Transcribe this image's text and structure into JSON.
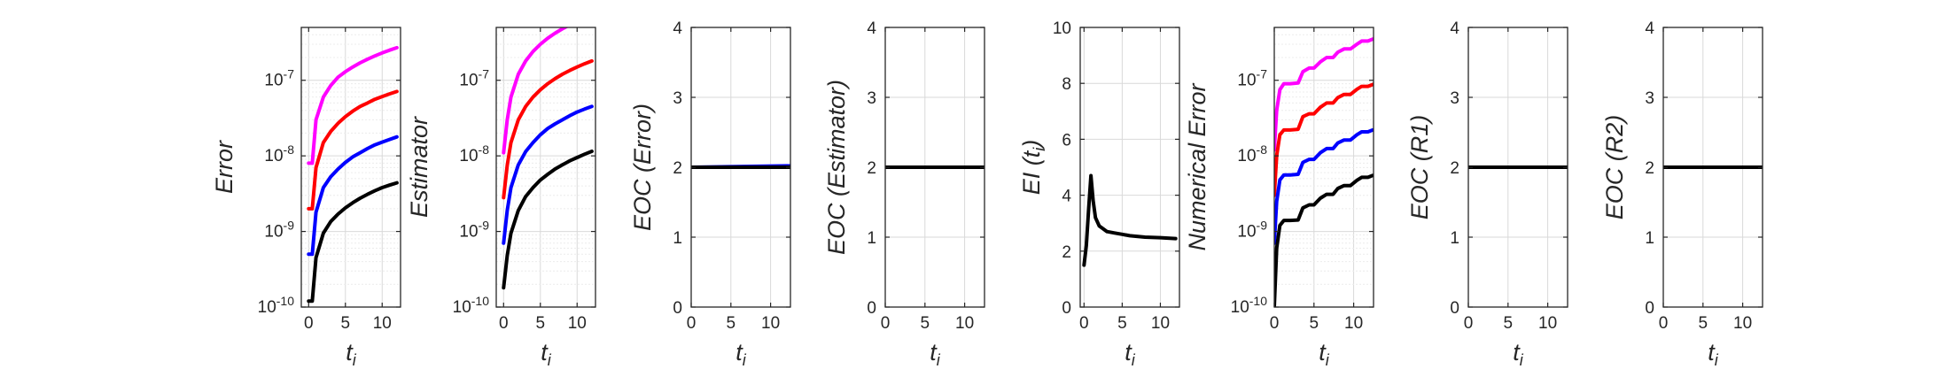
{
  "colors": {
    "axis": "#262626",
    "grid": "#d9d9d9",
    "series_black": "#000000",
    "series_blue": "#0000ff",
    "series_red": "#ff0000",
    "series_magenta": "#ff00ff",
    "background": "#ffffff"
  },
  "chart_data": [
    {
      "type": "line",
      "ylabel": "Error",
      "xlabel_main": "t",
      "xlabel_sub": "i",
      "yscale": "log",
      "ylim": [
        1e-10,
        5e-07
      ],
      "xlim": [
        -1,
        12.5
      ],
      "xticks": [
        "0",
        "5",
        "10"
      ],
      "yticks": [
        "10-10",
        "10-9",
        "10-8",
        "10-7"
      ],
      "grid": true,
      "x": [
        0,
        0.5,
        1,
        2,
        3,
        4,
        5,
        6,
        7,
        8,
        9,
        10,
        11,
        12
      ],
      "series": [
        {
          "color": "magenta",
          "values": [
            8e-09,
            8e-09,
            3e-08,
            6e-08,
            8.5e-08,
            1.1e-07,
            1.3e-07,
            1.5e-07,
            1.7e-07,
            1.9e-07,
            2.1e-07,
            2.3e-07,
            2.5e-07,
            2.7e-07
          ]
        },
        {
          "color": "red",
          "values": [
            2e-09,
            2e-09,
            7e-09,
            1.5e-08,
            2.1e-08,
            2.7e-08,
            3.3e-08,
            3.9e-08,
            4.5e-08,
            5e-08,
            5.6e-08,
            6.1e-08,
            6.6e-08,
            7.1e-08
          ]
        },
        {
          "color": "blue",
          "values": [
            5e-10,
            5e-10,
            1.8e-09,
            3.8e-09,
            5.3e-09,
            6.7e-09,
            8.2e-09,
            9.7e-09,
            1.1e-08,
            1.25e-08,
            1.4e-08,
            1.52e-08,
            1.65e-08,
            1.78e-08
          ]
        },
        {
          "color": "black",
          "values": [
            1.2e-10,
            1.2e-10,
            4.5e-10,
            9.5e-10,
            1.35e-09,
            1.7e-09,
            2.05e-09,
            2.4e-09,
            2.75e-09,
            3.1e-09,
            3.45e-09,
            3.8e-09,
            4.1e-09,
            4.4e-09
          ]
        }
      ]
    },
    {
      "type": "line",
      "ylabel": "Estimator",
      "xlabel_main": "t",
      "xlabel_sub": "i",
      "yscale": "log",
      "ylim": [
        1e-10,
        5e-07
      ],
      "xlim": [
        -1,
        12.5
      ],
      "xticks": [
        "0",
        "5",
        "10"
      ],
      "yticks": [
        "10-10",
        "10-9",
        "10-8",
        "10-7"
      ],
      "grid": true,
      "x": [
        0,
        0.5,
        1,
        2,
        3,
        4,
        5,
        6,
        7,
        8,
        9,
        10,
        11,
        12
      ],
      "series": [
        {
          "color": "magenta",
          "values": [
            1.1e-08,
            3e-08,
            6e-08,
            1.2e-07,
            1.8e-07,
            2.4e-07,
            3e-07,
            3.6e-07,
            4.2e-07,
            4.8e-07,
            5.4e-07,
            6e-07,
            6.6e-07,
            7.2e-07
          ]
        },
        {
          "color": "red",
          "values": [
            2.8e-09,
            7.5e-09,
            1.5e-08,
            3e-08,
            4.5e-08,
            6e-08,
            7.5e-08,
            9e-08,
            1.05e-07,
            1.2e-07,
            1.35e-07,
            1.5e-07,
            1.65e-07,
            1.8e-07
          ]
        },
        {
          "color": "blue",
          "values": [
            7e-10,
            1.9e-09,
            3.8e-09,
            7.6e-09,
            1.14e-08,
            1.5e-08,
            1.9e-08,
            2.3e-08,
            2.65e-08,
            3e-08,
            3.4e-08,
            3.8e-08,
            4.15e-08,
            4.5e-08
          ]
        },
        {
          "color": "black",
          "values": [
            1.8e-10,
            4.8e-10,
            9.5e-10,
            1.9e-09,
            2.9e-09,
            3.8e-09,
            4.8e-09,
            5.7e-09,
            6.7e-09,
            7.6e-09,
            8.6e-09,
            9.5e-09,
            1.05e-08,
            1.15e-08
          ]
        }
      ]
    },
    {
      "type": "line",
      "ylabel": "EOC (Error)",
      "xlabel_main": "t",
      "xlabel_sub": "i",
      "yscale": "linear",
      "ylim": [
        0,
        4
      ],
      "xlim": [
        0,
        12.5
      ],
      "xticks": [
        "0",
        "5",
        "10"
      ],
      "yticks": [
        "0",
        "1",
        "2",
        "3",
        "4"
      ],
      "grid": true,
      "x": [
        0,
        12.5
      ],
      "series": [
        {
          "color": "blue",
          "values": [
            2.0,
            2.02
          ]
        },
        {
          "color": "black",
          "values": [
            2.0,
            2.0
          ]
        }
      ]
    },
    {
      "type": "line",
      "ylabel": "EOC (Estimator)",
      "xlabel_main": "t",
      "xlabel_sub": "i",
      "yscale": "linear",
      "ylim": [
        0,
        4
      ],
      "xlim": [
        0,
        12.5
      ],
      "xticks": [
        "0",
        "5",
        "10"
      ],
      "yticks": [
        "0",
        "1",
        "2",
        "3",
        "4"
      ],
      "grid": true,
      "x": [
        0,
        12.5
      ],
      "series": [
        {
          "color": "black",
          "values": [
            2.0,
            2.0
          ]
        }
      ]
    },
    {
      "type": "line",
      "ylabel": "EI (t",
      "ylabel_sub": "i",
      "ylabel_close": ")",
      "xlabel_main": "t",
      "xlabel_sub": "i",
      "yscale": "linear",
      "ylim": [
        0,
        10
      ],
      "xlim": [
        -0.5,
        12.5
      ],
      "xticks": [
        "0",
        "5",
        "10"
      ],
      "yticks": [
        "0",
        "2",
        "4",
        "6",
        "8",
        "10"
      ],
      "grid": true,
      "x": [
        0,
        0.3,
        0.6,
        0.9,
        1.2,
        1.5,
        2,
        2.5,
        3,
        4,
        5,
        6,
        8,
        10,
        12
      ],
      "series": [
        {
          "color": "black",
          "values": [
            1.5,
            2.2,
            3.5,
            4.7,
            3.8,
            3.2,
            2.9,
            2.8,
            2.7,
            2.65,
            2.6,
            2.55,
            2.5,
            2.48,
            2.45
          ]
        }
      ]
    },
    {
      "type": "line",
      "ylabel": "Numerical Error",
      "xlabel_main": "t",
      "xlabel_sub": "i",
      "yscale": "log",
      "ylim": [
        1e-10,
        5e-07
      ],
      "xlim": [
        0,
        12.5
      ],
      "xticks": [
        "0",
        "5",
        "10"
      ],
      "yticks": [
        "10-10",
        "10-9",
        "10-8",
        "10-7"
      ],
      "grid": true,
      "x": [
        0,
        0.3,
        0.7,
        1.2,
        2.0,
        3.0,
        3.6,
        4.4,
        5.0,
        5.8,
        6.6,
        7.4,
        8.0,
        8.8,
        9.6,
        10.4,
        11.0,
        11.8,
        12.4
      ],
      "series": [
        {
          "color": "magenta",
          "values": [
            1.2e-08,
            4e-08,
            7.5e-08,
            9e-08,
            9e-08,
            9.2e-08,
            1.3e-07,
            1.45e-07,
            1.45e-07,
            1.75e-07,
            2e-07,
            2e-07,
            2.35e-07,
            2.6e-07,
            2.6e-07,
            3e-07,
            3.3e-07,
            3.3e-07,
            3.5e-07
          ]
        },
        {
          "color": "red",
          "values": [
            3e-09,
            1e-08,
            1.9e-08,
            2.2e-08,
            2.2e-08,
            2.25e-08,
            3.3e-08,
            3.6e-08,
            3.6e-08,
            4.4e-08,
            5e-08,
            5e-08,
            5.9e-08,
            6.5e-08,
            6.5e-08,
            7.6e-08,
            8.3e-08,
            8.3e-08,
            8.8e-08
          ]
        },
        {
          "color": "blue",
          "values": [
            7e-10,
            2.5e-09,
            4.8e-09,
            5.6e-09,
            5.6e-09,
            5.7e-09,
            8.2e-09,
            9e-09,
            9e-09,
            1.1e-08,
            1.25e-08,
            1.25e-08,
            1.48e-08,
            1.62e-08,
            1.62e-08,
            1.9e-08,
            2.08e-08,
            2.08e-08,
            2.2e-08
          ]
        },
        {
          "color": "black",
          "values": [
            1e-10,
            6e-10,
            1.2e-09,
            1.4e-09,
            1.4e-09,
            1.42e-09,
            2.05e-09,
            2.25e-09,
            2.25e-09,
            2.75e-09,
            3.1e-09,
            3.1e-09,
            3.7e-09,
            4.05e-09,
            4.05e-09,
            4.75e-09,
            5.2e-09,
            5.2e-09,
            5.5e-09
          ]
        }
      ]
    },
    {
      "type": "line",
      "ylabel": "EOC (R1)",
      "xlabel_main": "t",
      "xlabel_sub": "i",
      "yscale": "linear",
      "ylim": [
        0,
        4
      ],
      "xlim": [
        0,
        12.5
      ],
      "xticks": [
        "0",
        "5",
        "10"
      ],
      "yticks": [
        "0",
        "1",
        "2",
        "3",
        "4"
      ],
      "grid": true,
      "x": [
        0,
        12.5
      ],
      "series": [
        {
          "color": "black",
          "values": [
            2.0,
            2.0
          ]
        }
      ]
    },
    {
      "type": "line",
      "ylabel": "EOC (R2)",
      "xlabel_main": "t",
      "xlabel_sub": "i",
      "yscale": "linear",
      "ylim": [
        0,
        4
      ],
      "xlim": [
        0,
        12.5
      ],
      "xticks": [
        "0",
        "5",
        "10"
      ],
      "yticks": [
        "0",
        "1",
        "2",
        "3",
        "4"
      ],
      "grid": true,
      "x": [
        0,
        12.5
      ],
      "series": [
        {
          "color": "black",
          "values": [
            2.0,
            2.0
          ]
        }
      ]
    }
  ]
}
